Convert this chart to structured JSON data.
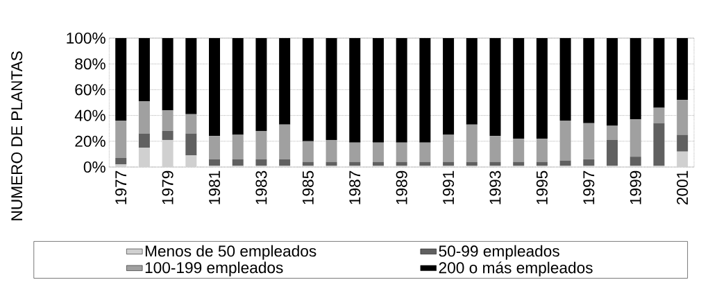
{
  "chart_data": {
    "type": "bar",
    "stacked": true,
    "ylabel": "NUMERO DE PLANTAS",
    "categories": [
      "1977",
      null,
      "1979",
      null,
      "1981",
      null,
      "1983",
      null,
      "1985",
      null,
      "1987",
      null,
      "1989",
      null,
      "1991",
      null,
      "1993",
      null,
      "1995",
      null,
      "1997",
      null,
      "1999",
      null,
      "2001"
    ],
    "series": [
      {
        "name": "Menos de 50 empleados",
        "color": "#d0d0d0",
        "values": [
          2,
          15,
          21,
          9,
          1,
          1,
          1,
          1,
          1,
          1,
          1,
          1,
          1,
          1,
          1,
          1,
          1,
          1,
          1,
          1,
          1,
          1,
          1,
          1,
          12
        ]
      },
      {
        "name": "50-99 empleados",
        "color": "#606060",
        "values": [
          5,
          11,
          7,
          17,
          5,
          5,
          5,
          5,
          3,
          3,
          3,
          3,
          3,
          3,
          3,
          3,
          3,
          3,
          3,
          4,
          5,
          20,
          7,
          33,
          13
        ]
      },
      {
        "name": "100-199 empleados",
        "color": "#a0a0a0",
        "values": [
          29,
          25,
          16,
          15,
          18,
          19,
          22,
          27,
          16,
          17,
          15,
          15,
          15,
          15,
          21,
          29,
          20,
          18,
          18,
          31,
          28,
          11,
          29,
          12,
          27
        ]
      },
      {
        "name": "200 o más empleados",
        "color": "#000000",
        "values": [
          64,
          49,
          56,
          59,
          76,
          75,
          72,
          67,
          80,
          79,
          81,
          81,
          81,
          81,
          75,
          67,
          76,
          78,
          78,
          64,
          66,
          68,
          63,
          54,
          48
        ]
      }
    ],
    "ylim": [
      0,
      100
    ],
    "yticks": [
      {
        "value": 0,
        "label": "0%"
      },
      {
        "value": 20,
        "label": "20%"
      },
      {
        "value": 40,
        "label": "40%"
      },
      {
        "value": 60,
        "label": "60%"
      },
      {
        "value": 80,
        "label": "80%"
      },
      {
        "value": 100,
        "label": "100%"
      }
    ],
    "grid": "y",
    "legend": "bottom"
  }
}
